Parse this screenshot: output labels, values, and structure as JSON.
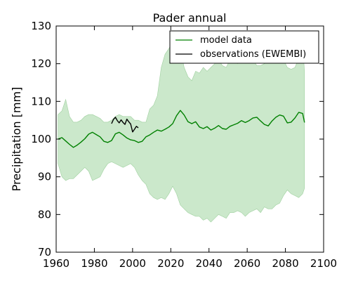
{
  "chart_data": {
    "type": "line",
    "title": "Pader annual",
    "xlabel": "",
    "ylabel": "Precipitation [mm]",
    "xlim": [
      1960,
      2100
    ],
    "ylim": [
      70,
      130
    ],
    "xticks": [
      1960,
      1980,
      2000,
      2020,
      2040,
      2060,
      2080,
      2100
    ],
    "yticks": [
      70,
      80,
      90,
      100,
      110,
      120,
      130
    ],
    "legend": {
      "position": "top-right"
    },
    "colors": {
      "model": "#008000",
      "band": "#a8d8a8",
      "observations": "#000000"
    },
    "series": [
      {
        "name": "model data",
        "x": [
          1961,
          1963,
          1965,
          1967,
          1969,
          1971,
          1973,
          1975,
          1977,
          1979,
          1981,
          1983,
          1985,
          1987,
          1989,
          1991,
          1993,
          1995,
          1997,
          1999,
          2001,
          2003,
          2005,
          2007,
          2009,
          2011,
          2013,
          2015,
          2017,
          2019,
          2021,
          2023,
          2025,
          2027,
          2029,
          2031,
          2033,
          2035,
          2037,
          2039,
          2041,
          2043,
          2045,
          2047,
          2049,
          2051,
          2053,
          2055,
          2057,
          2059,
          2061,
          2063,
          2065,
          2067,
          2069,
          2071,
          2073,
          2075,
          2077,
          2079,
          2081,
          2083,
          2085,
          2087,
          2089,
          2090
        ],
        "y": [
          100.0,
          100.4,
          99.5,
          98.6,
          97.8,
          98.4,
          99.2,
          100.1,
          101.3,
          101.8,
          101.2,
          100.6,
          99.4,
          99.1,
          99.6,
          101.4,
          101.8,
          101.1,
          100.3,
          99.8,
          99.6,
          99.1,
          99.4,
          100.6,
          101.1,
          101.8,
          102.4,
          102.1,
          102.6,
          103.2,
          104.1,
          106.2,
          107.6,
          106.4,
          104.6,
          104.1,
          104.6,
          103.2,
          102.8,
          103.3,
          102.4,
          102.9,
          103.6,
          102.8,
          102.6,
          103.4,
          103.8,
          104.2,
          104.9,
          104.4,
          104.9,
          105.6,
          105.8,
          104.8,
          103.9,
          103.5,
          104.8,
          105.8,
          106.4,
          106.1,
          104.3,
          104.5,
          105.6,
          107.1,
          106.8,
          104.4
        ]
      },
      {
        "name": "observations (EWEMBI)",
        "x": [
          1989,
          1990,
          1991,
          1992,
          1993,
          1994,
          1995,
          1996,
          1997,
          1998,
          1999,
          2000,
          2001,
          2002,
          2003
        ],
        "y": [
          104.1,
          105.2,
          105.8,
          104.9,
          104.3,
          105.1,
          104.4,
          103.9,
          105.3,
          104.6,
          104.0,
          101.9,
          102.6,
          103.4,
          103.0
        ]
      },
      {
        "name": "",
        "role": "model range",
        "x": [
          1961,
          1963,
          1965,
          1967,
          1969,
          1971,
          1973,
          1975,
          1977,
          1979,
          1981,
          1983,
          1985,
          1987,
          1989,
          1991,
          1993,
          1995,
          1997,
          1999,
          2001,
          2003,
          2005,
          2007,
          2009,
          2011,
          2013,
          2015,
          2017,
          2019,
          2021,
          2023,
          2025,
          2027,
          2029,
          2031,
          2033,
          2035,
          2037,
          2039,
          2041,
          2043,
          2045,
          2047,
          2049,
          2051,
          2053,
          2055,
          2057,
          2059,
          2061,
          2063,
          2065,
          2067,
          2069,
          2071,
          2073,
          2075,
          2077,
          2079,
          2081,
          2083,
          2085,
          2087,
          2089,
          2090
        ],
        "upper": [
          106.5,
          107.5,
          110.5,
          106.0,
          104.5,
          104.5,
          105.0,
          106.0,
          106.5,
          106.5,
          106.0,
          105.5,
          104.5,
          104.5,
          105.0,
          106.0,
          106.5,
          106.0,
          106.0,
          106.0,
          105.0,
          105.0,
          104.5,
          104.5,
          108.0,
          109.0,
          111.5,
          119.0,
          122.5,
          124.0,
          126.0,
          125.5,
          124.0,
          119.0,
          116.5,
          115.5,
          118.0,
          117.5,
          119.0,
          118.0,
          119.0,
          120.0,
          121.0,
          119.5,
          119.0,
          121.0,
          120.5,
          120.0,
          122.0,
          120.5,
          120.5,
          121.0,
          119.5,
          119.5,
          120.0,
          120.5,
          122.5,
          124.5,
          122.0,
          121.0,
          119.0,
          118.5,
          119.0,
          121.5,
          124.5,
          118.0
        ],
        "lower": [
          93.5,
          90.0,
          89.0,
          89.5,
          89.5,
          90.5,
          91.5,
          92.5,
          91.5,
          89.0,
          89.5,
          90.0,
          92.0,
          93.5,
          94.0,
          93.5,
          93.0,
          92.5,
          93.0,
          93.5,
          92.5,
          90.5,
          89.0,
          88.0,
          85.5,
          84.5,
          84.0,
          84.5,
          84.0,
          85.5,
          87.5,
          85.5,
          82.5,
          81.5,
          80.5,
          80.0,
          79.5,
          79.5,
          78.5,
          79.0,
          78.0,
          79.0,
          80.0,
          79.5,
          79.0,
          80.5,
          80.5,
          81.0,
          80.5,
          79.5,
          80.5,
          81.0,
          81.5,
          80.5,
          82.0,
          81.5,
          81.5,
          82.5,
          83.0,
          85.0,
          86.5,
          85.5,
          85.0,
          84.5,
          85.5,
          87.0
        ]
      }
    ]
  }
}
